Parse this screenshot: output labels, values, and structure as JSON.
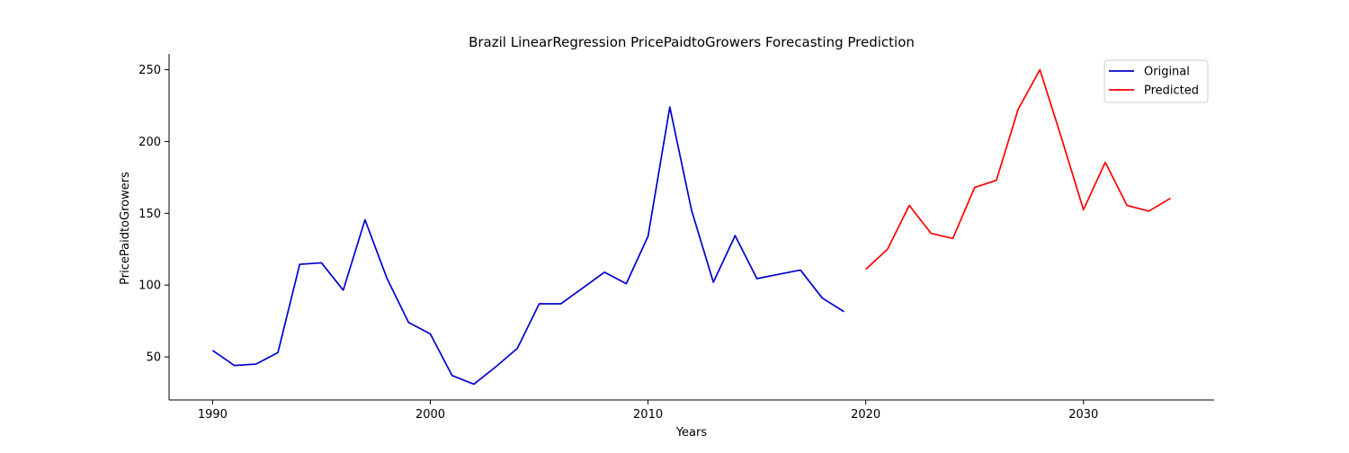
{
  "chart_data": {
    "type": "line",
    "title": "Brazil LinearRegression PricePaidtoGrowers Forecasting Prediction",
    "xlabel": "Years",
    "ylabel": "PricePaidtoGrowers",
    "xlim": [
      1988,
      2036
    ],
    "ylim": [
      20,
      261
    ],
    "xticks": [
      1990,
      2000,
      2010,
      2020,
      2030
    ],
    "yticks": [
      50,
      100,
      150,
      200,
      250
    ],
    "grid": false,
    "legend_position": "top-right",
    "series": [
      {
        "name": "Original",
        "color": "#0000cd",
        "x": [
          1990,
          1991,
          1992,
          1993,
          1994,
          1995,
          1996,
          1997,
          1998,
          1999,
          2000,
          2001,
          2002,
          2003,
          2004,
          2005,
          2006,
          2007,
          2008,
          2009,
          2010,
          2011,
          2012,
          2013,
          2014,
          2015,
          2016,
          2017,
          2018,
          2019
        ],
        "values": [
          54.5,
          44,
          45,
          53,
          114.5,
          115.5,
          96.5,
          145.5,
          105,
          74,
          66,
          37,
          31,
          43,
          56,
          87,
          87,
          98,
          109,
          101,
          134,
          224,
          152,
          102,
          134.5,
          104.5,
          107.5,
          110.5,
          91,
          81.5
        ]
      },
      {
        "name": "Predicted",
        "color": "#ff0000",
        "x": [
          2020,
          2021,
          2022,
          2023,
          2024,
          2025,
          2026,
          2027,
          2028,
          2029,
          2030,
          2031,
          2032,
          2033,
          2034
        ],
        "values": [
          111,
          125,
          155.5,
          136,
          132.5,
          168,
          173,
          222.5,
          250,
          202,
          152.5,
          185.5,
          155.5,
          151.5,
          160.5
        ]
      }
    ]
  }
}
